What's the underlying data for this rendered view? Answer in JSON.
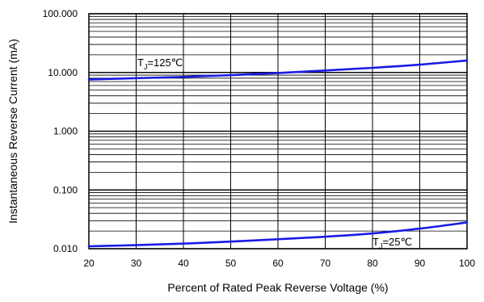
{
  "chart_data": {
    "type": "line",
    "title": "",
    "xlabel": "Percent of Rated Peak Reverse Voltage (%)",
    "ylabel": "Instantaneous Reverse Current (mA)",
    "xlim": [
      20,
      100
    ],
    "ylim": [
      0.01,
      100
    ],
    "y_scale": "log",
    "grid": true,
    "x_ticks": [
      "20",
      "30",
      "40",
      "50",
      "60",
      "70",
      "80",
      "90",
      "100"
    ],
    "y_ticks": [
      "0.010",
      "0.100",
      "1.000",
      "10.000",
      "100.000"
    ],
    "line_color": "#1a1ae6",
    "series": [
      {
        "label_main": "T",
        "label_sub": "J",
        "label_rest": "=125℃",
        "x": [
          20,
          30,
          40,
          50,
          60,
          70,
          80,
          90,
          100
        ],
        "y": [
          7.6,
          8.0,
          8.4,
          9.0,
          9.8,
          10.8,
          12.0,
          13.6,
          16.0
        ]
      },
      {
        "label_main": "T",
        "label_sub": "J",
        "label_rest": "=25℃",
        "x": [
          20,
          30,
          40,
          50,
          60,
          70,
          80,
          90,
          100
        ],
        "y": [
          0.011,
          0.0115,
          0.0122,
          0.0132,
          0.0145,
          0.016,
          0.0182,
          0.022,
          0.028
        ]
      }
    ]
  }
}
